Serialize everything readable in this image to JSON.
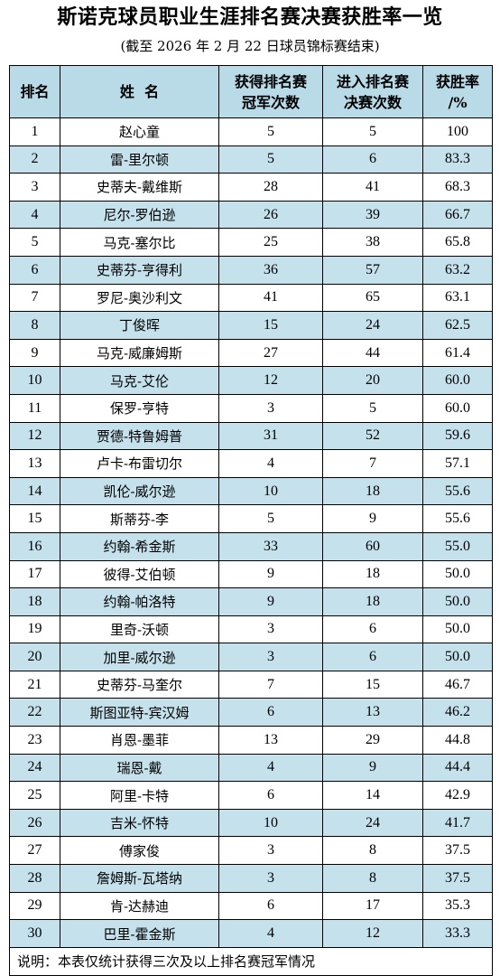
{
  "title": "斯诺克球员职业生涯排名赛决赛获胜率一览",
  "subtitle": "(截至 2026 年 2 月 22 日球员锦标赛结束)",
  "headers": {
    "rank": "排名",
    "name": "姓  名",
    "wins_line1": "获得排名赛",
    "wins_line2": "冠军次数",
    "finals_line1": "进入排名赛",
    "finals_line2": "决赛次数",
    "rate_line1": "获胜率",
    "rate_line2": "/%"
  },
  "rows": [
    {
      "rank": "1",
      "name": "赵心童",
      "wins": "5",
      "finals": "5",
      "rate": "100"
    },
    {
      "rank": "2",
      "name": "雷-里尔顿",
      "wins": "5",
      "finals": "6",
      "rate": "83.3"
    },
    {
      "rank": "3",
      "name": "史蒂夫-戴维斯",
      "wins": "28",
      "finals": "41",
      "rate": "68.3"
    },
    {
      "rank": "4",
      "name": "尼尔-罗伯逊",
      "wins": "26",
      "finals": "39",
      "rate": "66.7"
    },
    {
      "rank": "5",
      "name": "马克-塞尔比",
      "wins": "25",
      "finals": "38",
      "rate": "65.8"
    },
    {
      "rank": "6",
      "name": "史蒂芬-亨得利",
      "wins": "36",
      "finals": "57",
      "rate": "63.2"
    },
    {
      "rank": "7",
      "name": "罗尼-奥沙利文",
      "wins": "41",
      "finals": "65",
      "rate": "63.1"
    },
    {
      "rank": "8",
      "name": "丁俊晖",
      "wins": "15",
      "finals": "24",
      "rate": "62.5"
    },
    {
      "rank": "9",
      "name": "马克-威廉姆斯",
      "wins": "27",
      "finals": "44",
      "rate": "61.4"
    },
    {
      "rank": "10",
      "name": "马克-艾伦",
      "wins": "12",
      "finals": "20",
      "rate": "60.0"
    },
    {
      "rank": "11",
      "name": "保罗-亨特",
      "wins": "3",
      "finals": "5",
      "rate": "60.0"
    },
    {
      "rank": "12",
      "name": "贾德-特鲁姆普",
      "wins": "31",
      "finals": "52",
      "rate": "59.6"
    },
    {
      "rank": "13",
      "name": "卢卡-布雷切尔",
      "wins": "4",
      "finals": "7",
      "rate": "57.1"
    },
    {
      "rank": "14",
      "name": "凯伦-威尔逊",
      "wins": "10",
      "finals": "18",
      "rate": "55.6"
    },
    {
      "rank": "15",
      "name": "斯蒂芬-李",
      "wins": "5",
      "finals": "9",
      "rate": "55.6"
    },
    {
      "rank": "16",
      "name": "约翰-希金斯",
      "wins": "33",
      "finals": "60",
      "rate": "55.0"
    },
    {
      "rank": "17",
      "name": "彼得-艾伯顿",
      "wins": "9",
      "finals": "18",
      "rate": "50.0"
    },
    {
      "rank": "18",
      "name": "约翰-帕洛特",
      "wins": "9",
      "finals": "18",
      "rate": "50.0"
    },
    {
      "rank": "19",
      "name": "里奇-沃顿",
      "wins": "3",
      "finals": "6",
      "rate": "50.0"
    },
    {
      "rank": "20",
      "name": "加里-威尔逊",
      "wins": "3",
      "finals": "6",
      "rate": "50.0"
    },
    {
      "rank": "21",
      "name": "史蒂芬-马奎尔",
      "wins": "7",
      "finals": "15",
      "rate": "46.7"
    },
    {
      "rank": "22",
      "name": "斯图亚特-宾汉姆",
      "wins": "6",
      "finals": "13",
      "rate": "46.2"
    },
    {
      "rank": "23",
      "name": "肖恩-墨菲",
      "wins": "13",
      "finals": "29",
      "rate": "44.8"
    },
    {
      "rank": "24",
      "name": "瑞恩-戴",
      "wins": "4",
      "finals": "9",
      "rate": "44.4"
    },
    {
      "rank": "25",
      "name": "阿里-卡特",
      "wins": "6",
      "finals": "14",
      "rate": "42.9"
    },
    {
      "rank": "26",
      "name": "吉米-怀特",
      "wins": "10",
      "finals": "24",
      "rate": "41.7"
    },
    {
      "rank": "27",
      "name": "傅家俊",
      "wins": "3",
      "finals": "8",
      "rate": "37.5"
    },
    {
      "rank": "28",
      "name": "詹姆斯-瓦塔纳",
      "wins": "3",
      "finals": "8",
      "rate": "37.5"
    },
    {
      "rank": "29",
      "name": "肯-达赫迪",
      "wins": "6",
      "finals": "17",
      "rate": "35.3"
    },
    {
      "rank": "30",
      "name": "巴里-霍金斯",
      "wins": "4",
      "finals": "12",
      "rate": "33.3"
    }
  ],
  "note": "说明：本表仅统计获得三次及以上排名赛冠军情况",
  "colors": {
    "header_bg": "#b9dbe8",
    "stripe_bg": "#c4e1ec",
    "border": "#000000"
  }
}
